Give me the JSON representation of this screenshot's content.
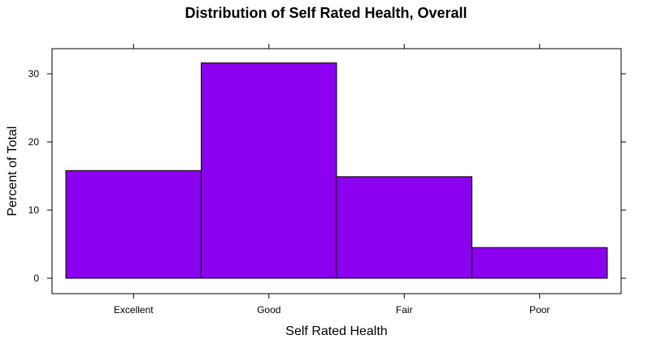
{
  "chart_data": {
    "type": "bar",
    "title": "Distribution of Self Rated Health, Overall",
    "xlabel": "Self Rated Health",
    "ylabel": "Percent of Total",
    "categories": [
      "Excellent",
      "Good",
      "Fair",
      "Poor"
    ],
    "values": [
      15.8,
      31.6,
      14.9,
      4.5
    ],
    "ylim": [
      -2,
      34
    ],
    "yticks": [
      0,
      10,
      20,
      30
    ],
    "bar_color": "#8b00ef",
    "grid": false
  }
}
